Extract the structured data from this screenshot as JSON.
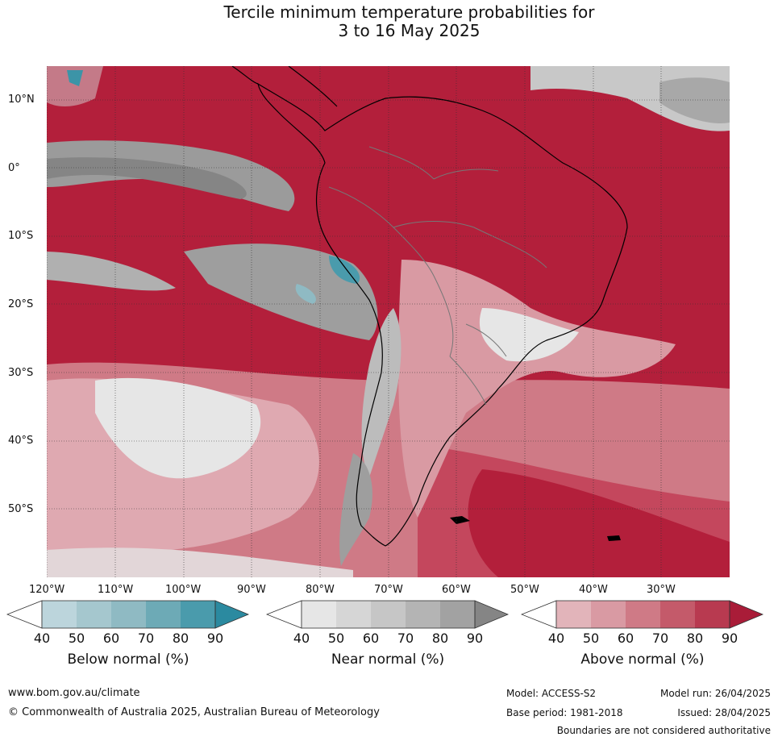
{
  "title": {
    "line1": "Tercile minimum temperature probabilities for",
    "line2": "3 to 16 May 2025"
  },
  "map": {
    "lat_labels": [
      "10°N",
      "0°",
      "10°S",
      "20°S",
      "30°S",
      "40°S",
      "50°S"
    ],
    "lon_labels": [
      "120°W",
      "110°W",
      "100°W",
      "90°W",
      "80°W",
      "70°W",
      "60°W",
      "50°W",
      "40°W",
      "30°W"
    ]
  },
  "legends": [
    {
      "title": "Below normal (%)",
      "ticks": [
        "40",
        "50",
        "60",
        "70",
        "80",
        "90"
      ],
      "colors": [
        "#bcd5dc",
        "#a5c7ce",
        "#8fbac3",
        "#6daab6",
        "#4a9bac",
        "#2b8aa0"
      ]
    },
    {
      "title": "Near normal (%)",
      "ticks": [
        "40",
        "50",
        "60",
        "70",
        "80",
        "90"
      ],
      "colors": [
        "#e6e6e6",
        "#d6d6d6",
        "#c6c6c6",
        "#b4b4b4",
        "#a2a2a2",
        "#858585"
      ]
    },
    {
      "title": "Above normal (%)",
      "ticks": [
        "40",
        "50",
        "60",
        "70",
        "80",
        "90"
      ],
      "colors": [
        "#e2b4ba",
        "#d99aa3",
        "#cf7a86",
        "#c45a6a",
        "#b83a50",
        "#a91c38"
      ]
    }
  ],
  "footer": {
    "website": "www.bom.gov.au/climate",
    "copyright": "© Commonwealth of Australia 2025, Australian Bureau of Meteorology",
    "model": "Model: ACCESS-S2",
    "model_run": "Model run: 26/04/2025",
    "base_period": "Base period: 1981-2018",
    "issued": "Issued: 28/04/2025",
    "disclaimer": "Boundaries are not considered authoritative"
  }
}
